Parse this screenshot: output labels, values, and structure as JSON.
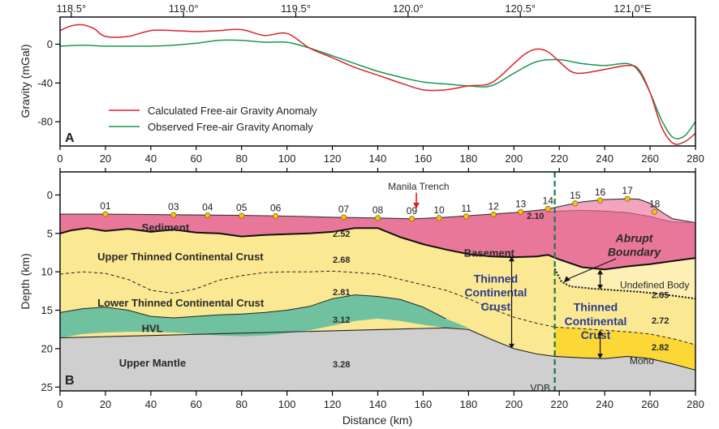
{
  "chart_data": [
    {
      "panel_label": "A",
      "type": "line",
      "top_axis": {
        "range": [
          118.45,
          121.28
        ],
        "ticks": [
          118.5,
          119.0,
          119.5,
          120.0,
          120.5,
          121.0
        ],
        "tick_labels": [
          "118.5°",
          "119.0°",
          "119.5°",
          "120.0°",
          "120.5°",
          "121.0°E"
        ]
      },
      "ylabel": "Gravity (mGal)",
      "ylim": [
        -105,
        28
      ],
      "y_ticks": [
        0,
        -40,
        -80
      ],
      "x_range": [
        0,
        280
      ],
      "series": [
        {
          "name": "Calculated Free-air Gravity Anomaly",
          "color": "#d9252b",
          "x": [
            0,
            5,
            10,
            15,
            20,
            30,
            40,
            50,
            60,
            70,
            80,
            90,
            100,
            110,
            120,
            130,
            140,
            150,
            160,
            170,
            180,
            190,
            200,
            205,
            210,
            215,
            220,
            225,
            230,
            240,
            250,
            255,
            260,
            265,
            270,
            275,
            280
          ],
          "y": [
            14,
            19,
            20,
            16,
            8,
            8,
            14,
            14,
            13,
            14,
            15,
            9,
            11,
            -4,
            -14,
            -24,
            -32,
            -40,
            -47,
            -47,
            -43,
            -40,
            -20,
            -10,
            -5,
            -8,
            -18,
            -28,
            -30,
            -26,
            -22,
            -26,
            -50,
            -85,
            -102,
            -101,
            -92
          ]
        },
        {
          "name": "Observed Free-air Gravity Anomaly",
          "color": "#1a9850",
          "x": [
            0,
            10,
            20,
            30,
            40,
            50,
            60,
            70,
            80,
            90,
            100,
            110,
            120,
            130,
            140,
            150,
            160,
            170,
            180,
            190,
            200,
            210,
            220,
            230,
            240,
            250,
            255,
            260,
            265,
            270,
            275,
            280
          ],
          "y": [
            -2,
            -1,
            -2,
            -2,
            -2,
            -1,
            1,
            4,
            4,
            2,
            2,
            -4,
            -12,
            -20,
            -28,
            -34,
            -39,
            -41,
            -43,
            -43,
            -30,
            -18,
            -16,
            -20,
            -22,
            -20,
            -28,
            -50,
            -78,
            -96,
            -95,
            -80
          ]
        }
      ]
    },
    {
      "panel_label": "B",
      "type": "area",
      "xlabel": "Distance (km)",
      "ylabel": "Depth (km)",
      "xlim": [
        0,
        280
      ],
      "ylim": [
        25.5,
        -3
      ],
      "x_ticks": [
        0,
        20,
        40,
        60,
        80,
        100,
        120,
        140,
        160,
        180,
        200,
        220,
        240,
        260,
        280
      ],
      "y_ticks": [
        0,
        5,
        10,
        15,
        20,
        25
      ],
      "layers": {
        "seafloor": {
          "x": [
            0,
            20,
            40,
            60,
            80,
            100,
            120,
            140,
            155,
            160,
            170,
            180,
            190,
            200,
            210,
            215,
            220,
            225,
            230,
            240,
            250,
            255,
            260,
            265,
            270,
            280
          ],
          "y": [
            2.5,
            2.5,
            2.55,
            2.6,
            2.65,
            2.75,
            2.9,
            3.0,
            3.1,
            3.05,
            2.9,
            2.7,
            2.5,
            2.3,
            2.0,
            1.85,
            1.5,
            1.2,
            0.9,
            0.6,
            0.5,
            0.55,
            1.1,
            2.2,
            3.1,
            3.6
          ]
        },
        "sediment_inner": {
          "x": [
            215,
            220,
            230,
            240,
            250,
            260,
            265,
            270,
            280
          ],
          "y": [
            2.2,
            2.1,
            2.0,
            2.1,
            2.3,
            2.8,
            3.2,
            3.5,
            3.6
          ]
        },
        "basement": {
          "x": [
            0,
            5,
            12,
            20,
            30,
            40,
            50,
            60,
            70,
            80,
            90,
            100,
            110,
            120,
            130,
            140,
            150,
            160,
            170,
            180,
            190,
            200,
            210,
            215,
            220,
            230,
            240,
            250,
            260,
            270,
            280
          ],
          "y": [
            5.0,
            4.6,
            4.3,
            4.7,
            4.4,
            4.8,
            4.5,
            4.9,
            5.0,
            5.4,
            5.2,
            5.1,
            5.0,
            4.8,
            4.3,
            4.3,
            5.5,
            6.4,
            7.1,
            7.7,
            8.0,
            8.1,
            8.0,
            7.8,
            8.4,
            9.4,
            9.7,
            9.3,
            9.0,
            8.6,
            8.2
          ]
        },
        "upper_lower_crust_boundary": {
          "x": [
            0,
            10,
            20,
            30,
            40,
            50,
            60,
            70,
            80,
            90,
            100,
            110,
            120,
            130,
            140,
            150,
            160,
            170,
            180,
            190,
            200,
            210,
            218
          ],
          "y": [
            10.3,
            10.0,
            10.2,
            11.0,
            12.4,
            12.8,
            12.2,
            11.1,
            10.5,
            10.1,
            10.0,
            10.0,
            9.9,
            10.1,
            10.3,
            11.0,
            11.7,
            12.4,
            13.5,
            14.8,
            15.9,
            16.7,
            17.2
          ]
        },
        "abrupt_boundary": {
          "x": [
            218,
            221,
            225,
            235,
            245,
            255,
            265,
            275,
            280
          ],
          "y": [
            9.6,
            11.3,
            11.9,
            12.2,
            12.4,
            12.6,
            12.9,
            13.3,
            13.5
          ]
        },
        "undefined_body_base": {
          "x": [
            218,
            230,
            240,
            250,
            260,
            270,
            280
          ],
          "y": [
            17.2,
            17.4,
            17.6,
            17.8,
            18.1,
            18.7,
            19.5
          ]
        },
        "hvl_top": {
          "x": [
            0,
            10,
            20,
            30,
            40,
            50,
            60,
            70,
            80,
            90,
            100,
            110,
            120,
            130,
            140,
            150,
            160,
            170
          ],
          "y": [
            15.3,
            14.8,
            14.6,
            15.0,
            15.8,
            16.0,
            15.8,
            15.6,
            15.5,
            15.3,
            15.0,
            14.5,
            13.5,
            13.0,
            13.2,
            13.6,
            14.6,
            16.1
          ]
        },
        "hvl_base": {
          "x": [
            0,
            10,
            20,
            30,
            40,
            50,
            60,
            70,
            80,
            90,
            100,
            110,
            120,
            130,
            140,
            150,
            160,
            170,
            180
          ],
          "y": [
            18.6,
            18.1,
            17.9,
            17.8,
            17.8,
            17.9,
            18.1,
            18.3,
            18.4,
            18.3,
            18.0,
            17.6,
            17.0,
            16.4,
            16.1,
            16.4,
            16.9,
            17.3,
            17.3
          ]
        },
        "moho": {
          "x": [
            0,
            170,
            180,
            190,
            200,
            210,
            218,
            230,
            240,
            250,
            260,
            270,
            280
          ],
          "y": [
            18.6,
            17.3,
            17.5,
            18.8,
            20.0,
            20.7,
            21.0,
            21.2,
            21.3,
            21.0,
            21.3,
            22.0,
            22.8
          ]
        }
      },
      "colors": {
        "sediment": "#e9779a",
        "sediment_light": "#f3a5bf",
        "crust": "#fbe892",
        "undefined_body": "#fdf0b4",
        "lower_east": "#fcd837",
        "hvl": "#6fc1a0",
        "mantle": "#cfcfcf",
        "vdb_line": "#1b7a4a",
        "station": "#f6c215",
        "trench_arrow": "#e02020"
      },
      "stations": {
        "labels": [
          "01",
          "03",
          "04",
          "05",
          "06",
          "07",
          "08",
          "09",
          "10",
          "11",
          "12",
          "13",
          "14",
          "15",
          "16",
          "17",
          "18"
        ],
        "x": [
          20,
          50,
          65,
          80,
          95,
          125,
          140,
          155,
          167,
          179,
          191,
          203,
          215,
          227,
          238,
          250,
          262
        ],
        "y": [
          2.5,
          2.6,
          2.65,
          2.7,
          2.75,
          2.9,
          3.0,
          3.1,
          3.0,
          2.8,
          2.55,
          2.2,
          1.8,
          1.1,
          0.7,
          0.5,
          2.2
        ]
      },
      "densities": [
        {
          "text": "2.10",
          "x": 209.5,
          "y": 2.7
        },
        {
          "text": "2.52",
          "x": 124,
          "y": 5.0
        },
        {
          "text": "2.68",
          "x": 124,
          "y": 8.4
        },
        {
          "text": "2.81",
          "x": 124,
          "y": 12.6
        },
        {
          "text": "3.12",
          "x": 124,
          "y": 16.2
        },
        {
          "text": "3.28",
          "x": 124,
          "y": 22.0
        },
        {
          "text": "2.65",
          "x": 264.5,
          "y": 13.0
        },
        {
          "text": "2.72",
          "x": 264.5,
          "y": 16.3
        },
        {
          "text": "2.82",
          "x": 264.5,
          "y": 19.8
        }
      ],
      "labels": [
        {
          "text": "Sediment",
          "x": 36,
          "y": 4.2,
          "style": "layer-label",
          "anchor": "start"
        },
        {
          "text": "Upper Thinned Continental Crust",
          "x": 16.5,
          "y": 8.0,
          "style": "layer-label",
          "anchor": "start"
        },
        {
          "text": "Lower Thinned Continental Crust",
          "x": 16.5,
          "y": 14.0,
          "style": "layer-label",
          "anchor": "start"
        },
        {
          "text": "HVL",
          "x": 36,
          "y": 17.3,
          "style": "layer-label",
          "anchor": "start"
        },
        {
          "text": "Upper Mantle",
          "x": 26,
          "y": 21.8,
          "style": "layer-label",
          "anchor": "start"
        },
        {
          "text": "Basement",
          "x": 178,
          "y": 7.5,
          "style": "layer-label",
          "anchor": "start"
        },
        {
          "text": "Thinned",
          "x": 192,
          "y": 10.9,
          "style": "blue-label",
          "anchor": "middle"
        },
        {
          "text": "Continental",
          "x": 192,
          "y": 12.7,
          "style": "blue-label",
          "anchor": "middle"
        },
        {
          "text": "Crust",
          "x": 192,
          "y": 14.5,
          "style": "blue-label",
          "anchor": "middle"
        },
        {
          "text": "Thinned",
          "x": 236,
          "y": 14.6,
          "style": "blue-label",
          "anchor": "middle"
        },
        {
          "text": "Continental",
          "x": 236,
          "y": 16.4,
          "style": "blue-label",
          "anchor": "middle"
        },
        {
          "text": "Crust",
          "x": 236,
          "y": 18.2,
          "style": "blue-label",
          "anchor": "middle"
        },
        {
          "text": "Abrupt",
          "x": 253,
          "y": 5.6,
          "style": "abrupt",
          "anchor": "middle"
        },
        {
          "text": "Boundary",
          "x": 253,
          "y": 7.4,
          "style": "abrupt",
          "anchor": "middle"
        },
        {
          "text": "Undefined Body",
          "x": 262,
          "y": 11.6,
          "style": "small",
          "anchor": "middle"
        },
        {
          "text": "Manila Trench",
          "x": 158,
          "y": -1.2,
          "style": "small",
          "anchor": "middle"
        },
        {
          "text": "VDB",
          "x": 216,
          "y": 25.0,
          "style": "small",
          "anchor": "end"
        },
        {
          "text": "Moho",
          "x": 251,
          "y": 21.5,
          "style": "small",
          "anchor": "start"
        }
      ],
      "manila_trench_x": 157,
      "vdb_x": 218
    }
  ]
}
